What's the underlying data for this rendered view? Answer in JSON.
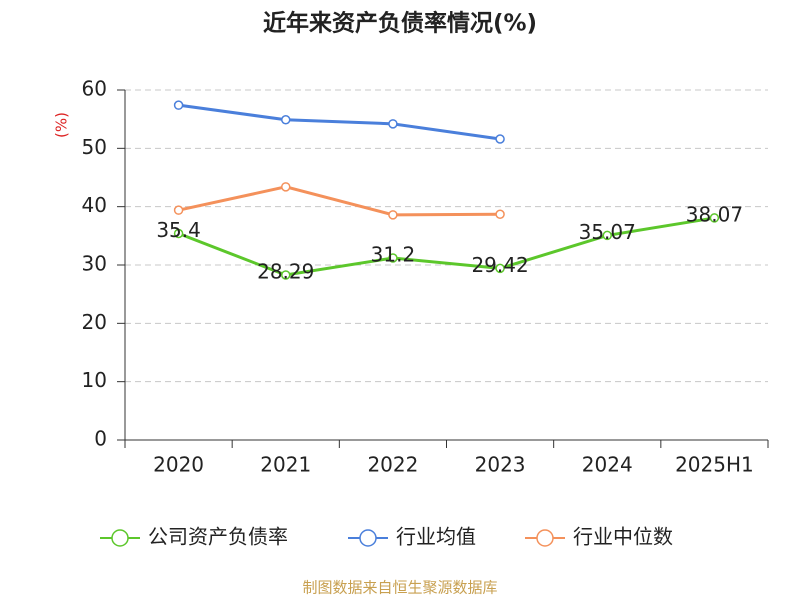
{
  "chart_data": {
    "type": "line",
    "title": "近年来资产负债率情况(%)",
    "y_label": "(%)",
    "source": "制图数据来自恒生聚源数据库",
    "categories": [
      "2020",
      "2021",
      "2022",
      "2023",
      "2024",
      "2025H1"
    ],
    "series": [
      {
        "name": "公司资产负债率",
        "color": "#5cc72b",
        "values": [
          35.4,
          28.29,
          31.2,
          29.42,
          35.07,
          38.07
        ],
        "show_labels": true
      },
      {
        "name": "行业均值",
        "color": "#4a7fdb",
        "values": [
          57.4,
          54.9,
          54.2,
          51.6,
          null,
          null
        ]
      },
      {
        "name": "行业中位数",
        "color": "#f4915b",
        "values": [
          39.4,
          43.4,
          38.6,
          38.7,
          null,
          null
        ]
      }
    ],
    "ylim": [
      0,
      60
    ],
    "yticks": [
      0,
      10,
      20,
      30,
      40,
      50,
      60
    ],
    "grid": true
  }
}
